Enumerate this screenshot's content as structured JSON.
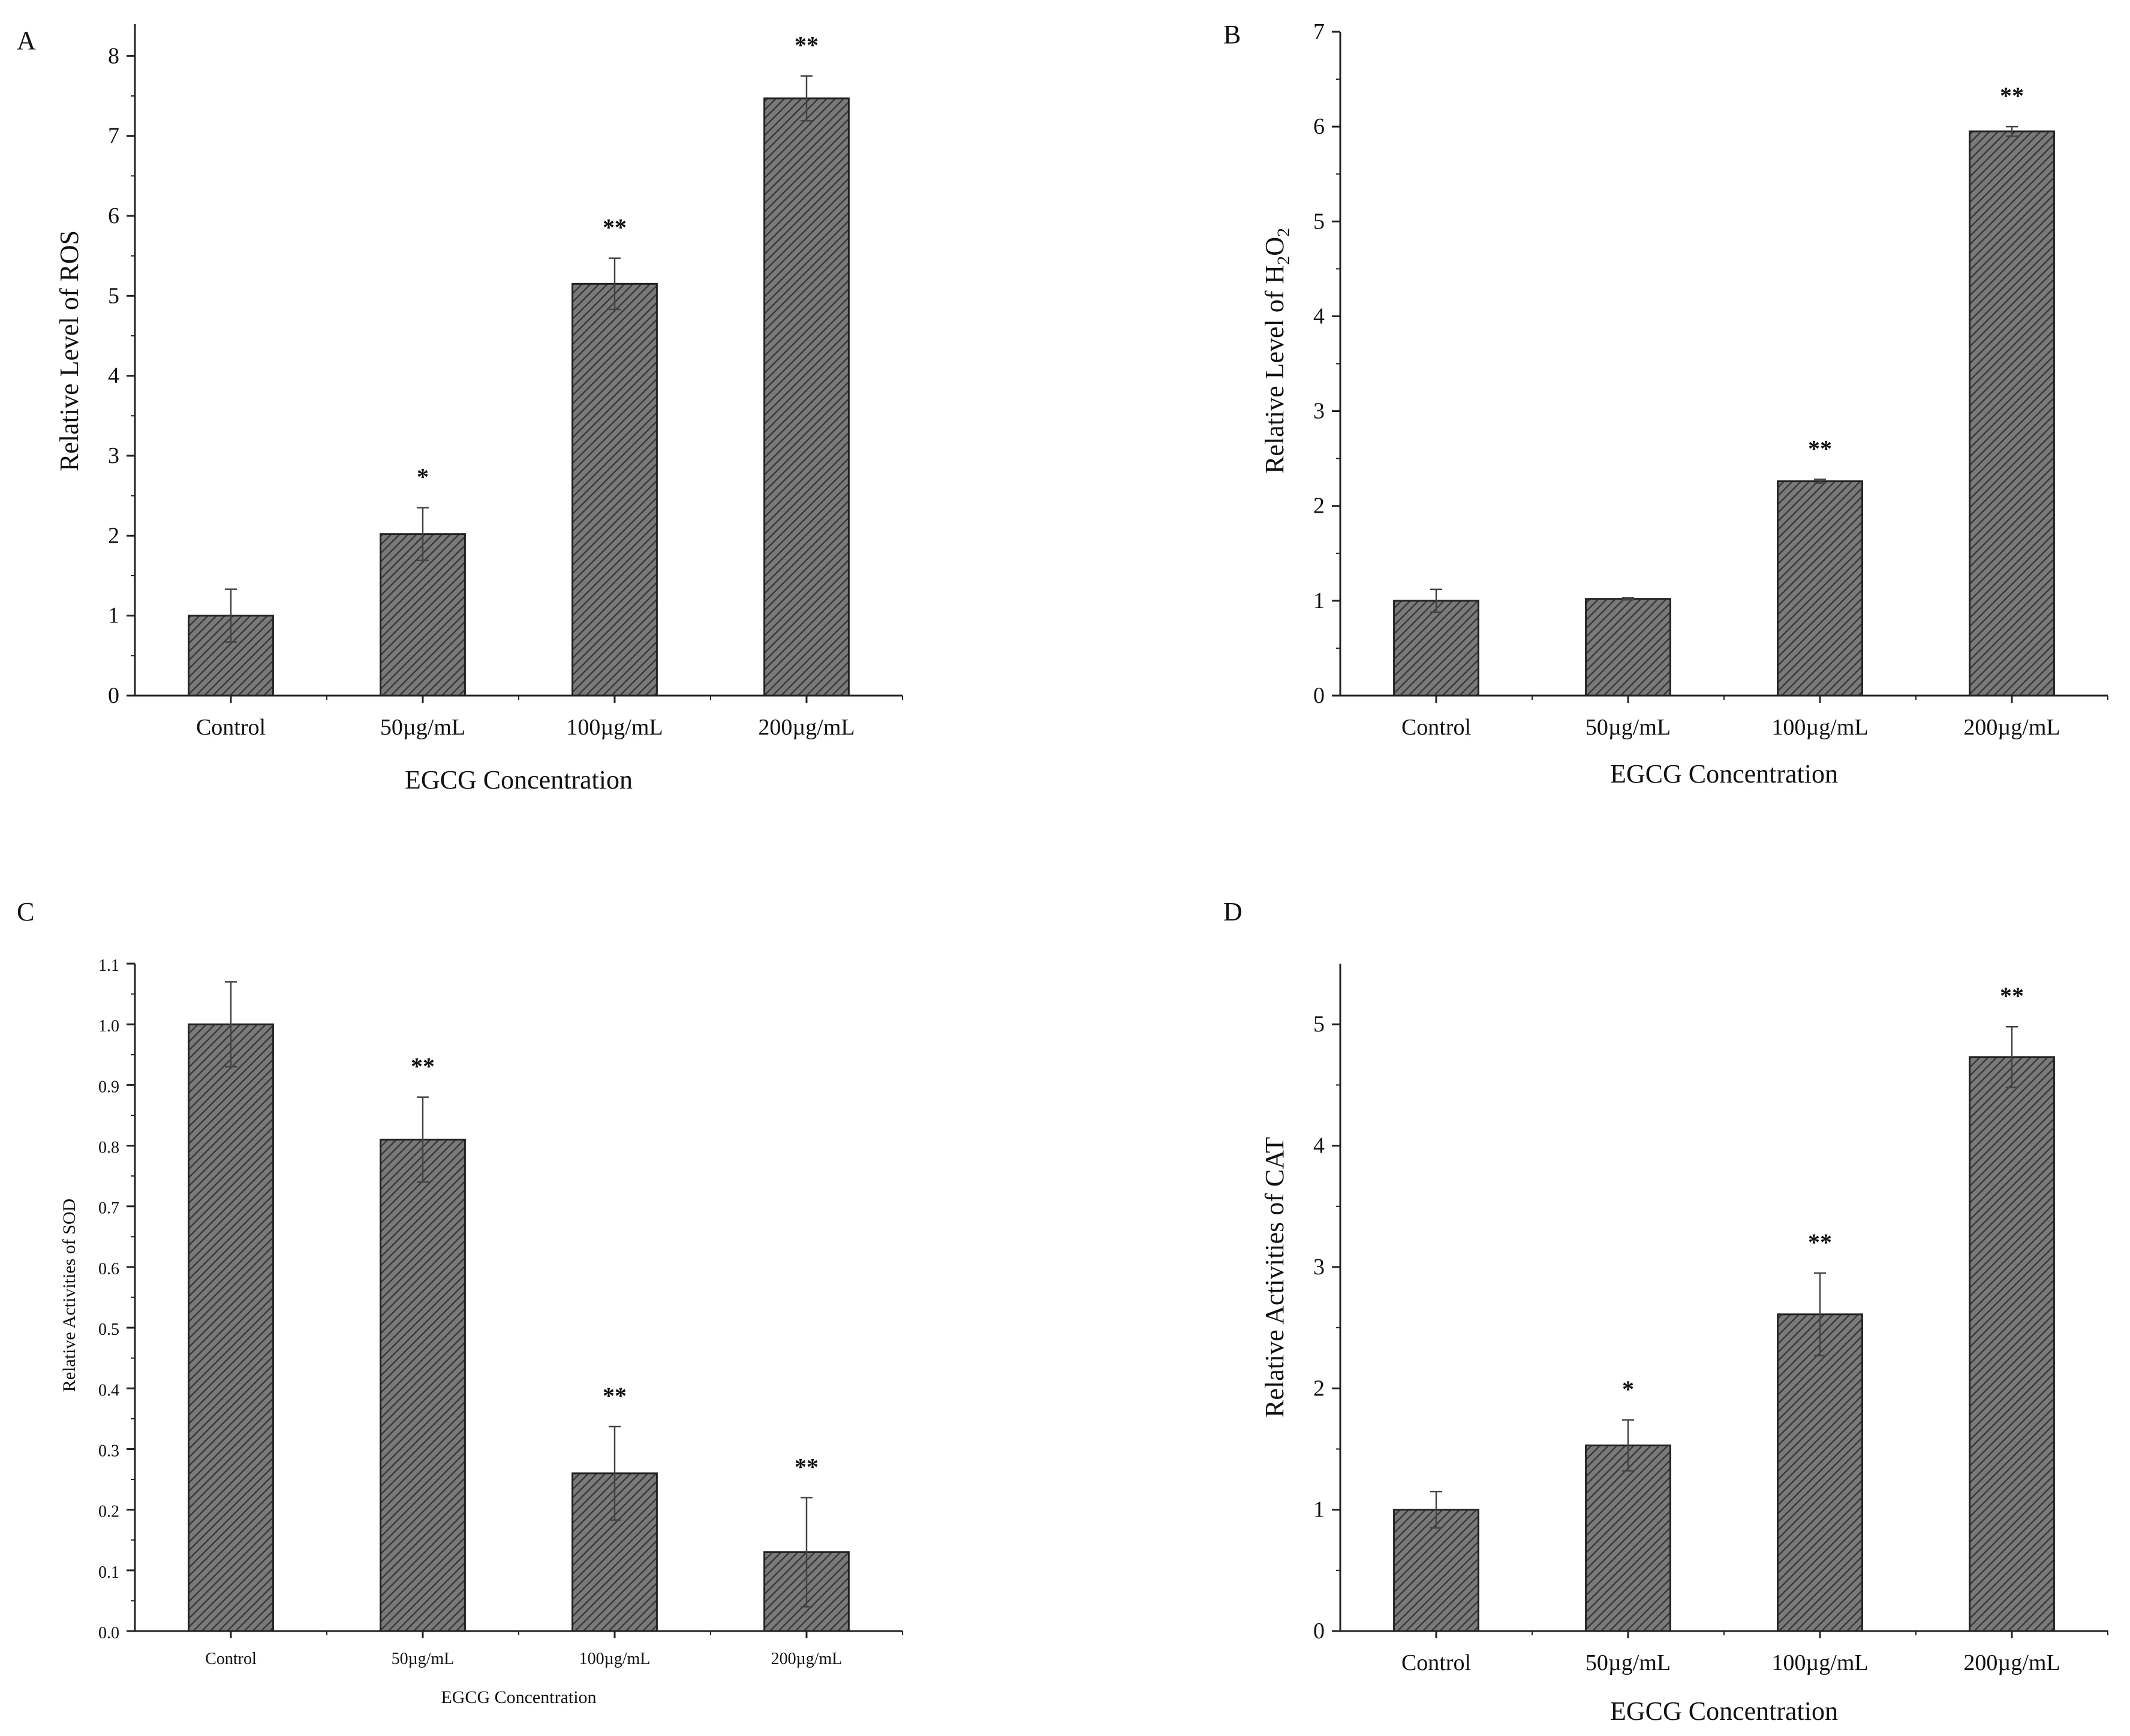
{
  "colors": {
    "bar_fill": "#6f6f6f",
    "hatch": "#3a3a3a",
    "axis": "#222222",
    "text": "#111111"
  },
  "chart_data": [
    {
      "panel": "A",
      "type": "bar",
      "categories": [
        "Control",
        "50µg/mL",
        "100µg/mL",
        "200µg/mL"
      ],
      "values": [
        1.0,
        2.02,
        5.15,
        7.47
      ],
      "errors": [
        0.33,
        0.33,
        0.32,
        0.28
      ],
      "significance": [
        "",
        "*",
        "**",
        "**"
      ],
      "xlabel": "EGCG Concentration",
      "ylabel": "Relative Level of  ROS",
      "ylim": [
        0,
        8.4
      ],
      "yticks": [
        "0",
        "1",
        "2",
        "3",
        "4",
        "5",
        "6",
        "7",
        "8"
      ],
      "ytick_values": [
        0,
        1,
        2,
        3,
        4,
        5,
        6,
        7,
        8
      ]
    },
    {
      "panel": "B",
      "type": "bar",
      "categories": [
        "Control",
        "50µg/mL",
        "100µg/mL",
        "200µg/mL"
      ],
      "values": [
        1.0,
        1.02,
        2.26,
        5.95
      ],
      "errors": [
        0.12,
        0.01,
        0.02,
        0.05
      ],
      "significance": [
        "",
        "",
        "**",
        "**"
      ],
      "xlabel": "EGCG Concentration",
      "ylabel": "Relative Level of  H",
      "ylabel_sub_a": "2",
      "ylabel_mid": "O",
      "ylabel_sub_b": "2",
      "ylim": [
        0,
        7
      ],
      "yticks": [
        "0",
        "1",
        "2",
        "3",
        "4",
        "5",
        "6",
        "7"
      ],
      "ytick_values": [
        0,
        1,
        2,
        3,
        4,
        5,
        6,
        7
      ]
    },
    {
      "panel": "C",
      "type": "bar",
      "categories": [
        "Control",
        "50µg/mL",
        "100µg/mL",
        "200µg/mL"
      ],
      "values": [
        1.0,
        0.81,
        0.26,
        0.13
      ],
      "errors": [
        0.07,
        0.07,
        0.077,
        0.09
      ],
      "significance": [
        "",
        "**",
        "**",
        "**"
      ],
      "xlabel": "EGCG Concentration",
      "ylabel": "Relative Activities of SOD",
      "ylim": [
        0,
        1.1
      ],
      "yticks": [
        "0.0",
        "0.1",
        "0.2",
        "0.3",
        "0.4",
        "0.5",
        "0.6",
        "0.7",
        "0.8",
        "0.9",
        "1.0",
        "1.1"
      ],
      "ytick_values": [
        0,
        0.1,
        0.2,
        0.3,
        0.4,
        0.5,
        0.6,
        0.7,
        0.8,
        0.9,
        1.0,
        1.1
      ]
    },
    {
      "panel": "D",
      "type": "bar",
      "categories": [
        "Control",
        "50µg/mL",
        "100µg/mL",
        "200µg/mL"
      ],
      "values": [
        1.0,
        1.53,
        2.61,
        4.73
      ],
      "errors": [
        0.15,
        0.21,
        0.34,
        0.25
      ],
      "significance": [
        "",
        "*",
        "**",
        "**"
      ],
      "xlabel": "EGCG Concentration",
      "ylabel": "Relative Activities of  CAT",
      "ylim": [
        0,
        5.5
      ],
      "yticks": [
        "0",
        "1",
        "2",
        "3",
        "4",
        "5"
      ],
      "ytick_values": [
        0,
        1,
        2,
        3,
        4,
        5
      ]
    }
  ]
}
